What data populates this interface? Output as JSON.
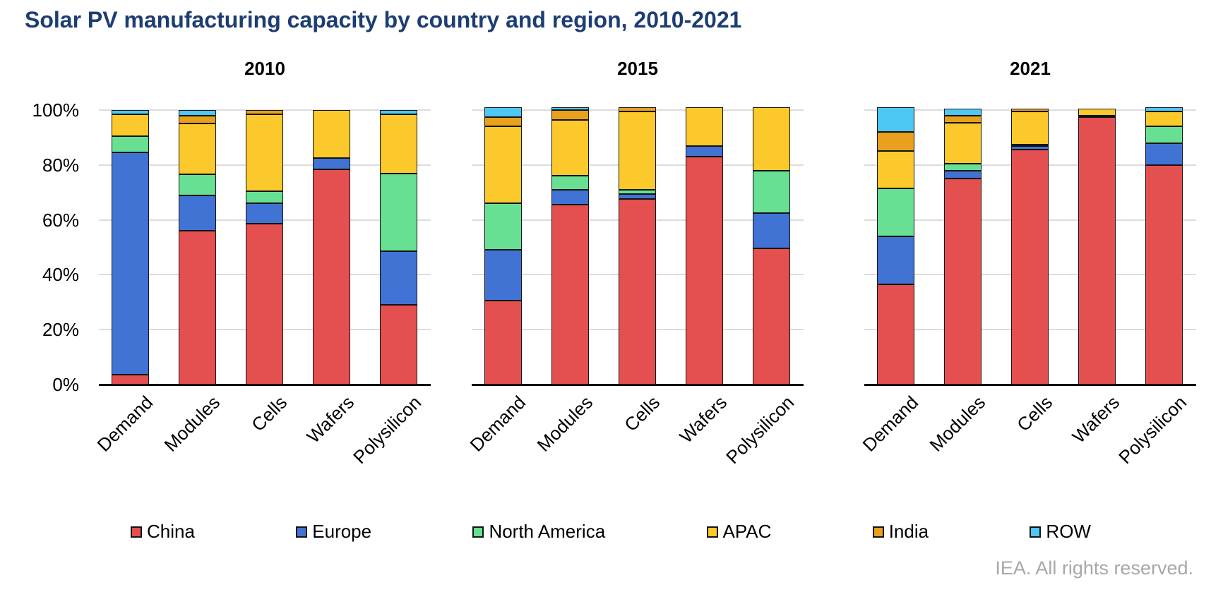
{
  "title": "Solar PV manufacturing capacity by country and region, 2010-2021",
  "footer": "IEA. All rights reserved.",
  "colors": {
    "title_text": "#1d3d73",
    "gridline": "#dcdcdc",
    "axis": "#111111",
    "footer_text": "#a8a8a8"
  },
  "chart_data": {
    "type": "bar",
    "stacked": true,
    "value_unit": "percent of world total",
    "grid": true,
    "legend_position": "bottom",
    "ylim": [
      0,
      100
    ],
    "y_ticks": [
      "100%",
      "80%",
      "60%",
      "40%",
      "20%",
      "0%"
    ],
    "categories": [
      "Demand",
      "Modules",
      "Cells",
      "Wafers",
      "Polysilicon"
    ],
    "legend": [
      {
        "label": "China",
        "color": "#e44f4f"
      },
      {
        "label": "Europe",
        "color": "#4173d4"
      },
      {
        "label": "North America",
        "color": "#67e093"
      },
      {
        "label": "APAC",
        "color": "#fbc92b"
      },
      {
        "label": "India",
        "color": "#e8a01d"
      },
      {
        "label": "ROW",
        "color": "#4ec7f2"
      }
    ],
    "panels": [
      {
        "year": "2010",
        "series": [
          {
            "name": "China",
            "values": [
              3.5,
              56,
              58.5,
              78.5,
              29
            ]
          },
          {
            "name": "Europe",
            "values": [
              81,
              13,
              7.5,
              4,
              19.5
            ]
          },
          {
            "name": "North America",
            "values": [
              6,
              7.5,
              4.5,
              0,
              28.5
            ]
          },
          {
            "name": "APAC",
            "values": [
              8,
              18.5,
              28,
              17.5,
              21.5
            ]
          },
          {
            "name": "India",
            "values": [
              0,
              3,
              1.5,
              0,
              0
            ]
          },
          {
            "name": "ROW",
            "values": [
              1.5,
              2,
              0,
              0,
              1.5
            ]
          }
        ]
      },
      {
        "year": "2015",
        "series": [
          {
            "name": "China",
            "values": [
              30.5,
              65.5,
              67.5,
              83,
              49.5
            ]
          },
          {
            "name": "Europe",
            "values": [
              18.5,
              5.5,
              2,
              4,
              13
            ]
          },
          {
            "name": "North America",
            "values": [
              17,
              5,
              1.5,
              0,
              15.5
            ]
          },
          {
            "name": "APAC",
            "values": [
              28,
              20.5,
              28.5,
              14,
              23
            ]
          },
          {
            "name": "India",
            "values": [
              3.5,
              3.5,
              1.5,
              0,
              0
            ]
          },
          {
            "name": "ROW",
            "values": [
              3.5,
              1,
              0,
              0,
              0
            ]
          }
        ]
      },
      {
        "year": "2021",
        "series": [
          {
            "name": "China",
            "values": [
              36.5,
              75,
              85.5,
              97.5,
              80
            ]
          },
          {
            "name": "Europe",
            "values": [
              17.5,
              3,
              1.5,
              0.5,
              8
            ]
          },
          {
            "name": "North America",
            "values": [
              17.5,
              2.5,
              0.5,
              0,
              6
            ]
          },
          {
            "name": "APAC",
            "values": [
              13.5,
              15,
              12,
              2.5,
              5.5
            ]
          },
          {
            "name": "India",
            "values": [
              7,
              2.5,
              1,
              0,
              0
            ]
          },
          {
            "name": "ROW",
            "values": [
              9,
              2.5,
              0,
              0,
              1.5
            ]
          }
        ]
      }
    ]
  }
}
